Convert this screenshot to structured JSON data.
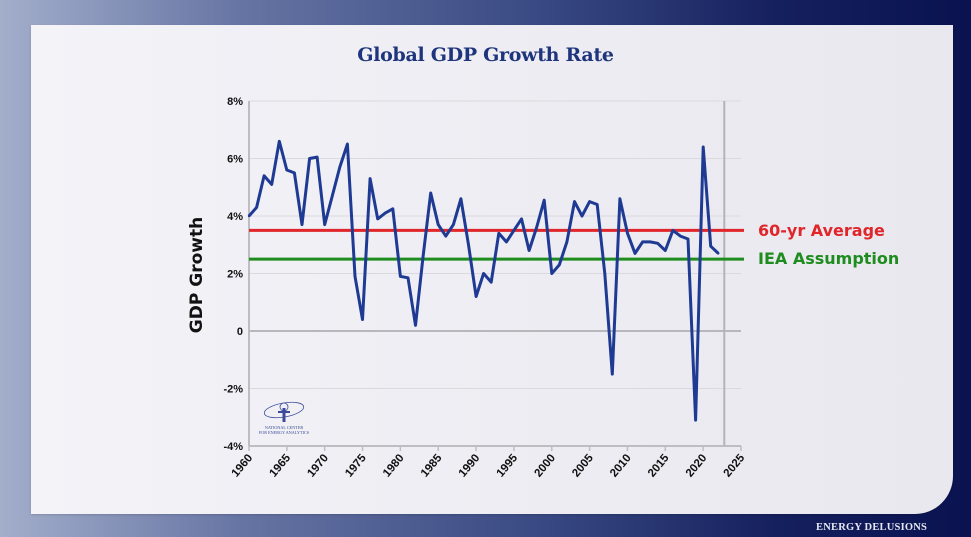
{
  "footer": {
    "brand": "ENERGY DELUSIONS"
  },
  "logo": {
    "line1": "NATIONAL CENTER",
    "line2": "FOR ENERGY ANALYTICS"
  },
  "colors": {
    "series": "#1f3a93",
    "average_line": "#e0262a",
    "iea_line": "#1e8c1e",
    "title": "#1e347c"
  },
  "chart_data": {
    "type": "line",
    "title": "Global GDP Growth Rate",
    "xlabel": "",
    "ylabel": "GDP Growth",
    "xlim": [
      1960,
      2025
    ],
    "ylim": [
      -4,
      8
    ],
    "grid": true,
    "x_ticks": [
      1960,
      1965,
      1970,
      1975,
      1980,
      1985,
      1990,
      1995,
      2000,
      2005,
      2010,
      2015,
      2020,
      2025
    ],
    "x_tick_labels": [
      "1960",
      "1965",
      "1970",
      "1975",
      "1980",
      "1985",
      "1990",
      "1995",
      "2000",
      "2005",
      "2010",
      "2015",
      "2020",
      "2025"
    ],
    "y_ticks": [
      -4,
      -2,
      0,
      2,
      4,
      6,
      8
    ],
    "y_tick_labels": [
      "-4%",
      "-2%",
      "0",
      "2%",
      "4%",
      "6%",
      "8%"
    ],
    "series": [
      {
        "name": "Global GDP growth (%)",
        "x": [
          1960,
          1961,
          1962,
          1963,
          1964,
          1965,
          1966,
          1967,
          1968,
          1969,
          1970,
          1971,
          1972,
          1973,
          1974,
          1975,
          1976,
          1977,
          1978,
          1979,
          1980,
          1981,
          1982,
          1983,
          1984,
          1985,
          1986,
          1987,
          1988,
          1989,
          1990,
          1991,
          1992,
          1993,
          1994,
          1995,
          1996,
          1997,
          1998,
          1999,
          2000,
          2001,
          2002,
          2003,
          2004,
          2005,
          2006,
          2007,
          2008,
          2009,
          2010,
          2011,
          2012,
          2013,
          2014,
          2015,
          2016,
          2017,
          2018,
          2019,
          2020,
          2021,
          2022
        ],
        "values": [
          4.0,
          4.3,
          5.4,
          5.1,
          6.6,
          5.6,
          5.5,
          3.7,
          6.0,
          6.05,
          3.7,
          4.7,
          5.7,
          6.5,
          1.9,
          0.4,
          5.3,
          3.9,
          4.1,
          4.25,
          1.9,
          1.85,
          0.2,
          2.6,
          4.8,
          3.7,
          3.3,
          3.7,
          4.6,
          3.0,
          1.2,
          2.0,
          1.7,
          3.4,
          3.1,
          3.5,
          3.9,
          2.8,
          3.6,
          4.55,
          2.0,
          2.3,
          3.1,
          4.5,
          4.0,
          4.5,
          4.4,
          2.0,
          -1.5,
          4.6,
          3.4,
          2.7,
          3.1,
          3.1,
          3.05,
          2.8,
          3.5,
          3.3,
          3.2,
          -3.1,
          6.4,
          2.95,
          2.7
        ]
      }
    ],
    "reference_lines": [
      {
        "name": "60-yr Average",
        "value": 3.5
      },
      {
        "name": "IEA Assumption",
        "value": 2.5
      }
    ],
    "vertical_marker": {
      "x": 2022
    }
  }
}
